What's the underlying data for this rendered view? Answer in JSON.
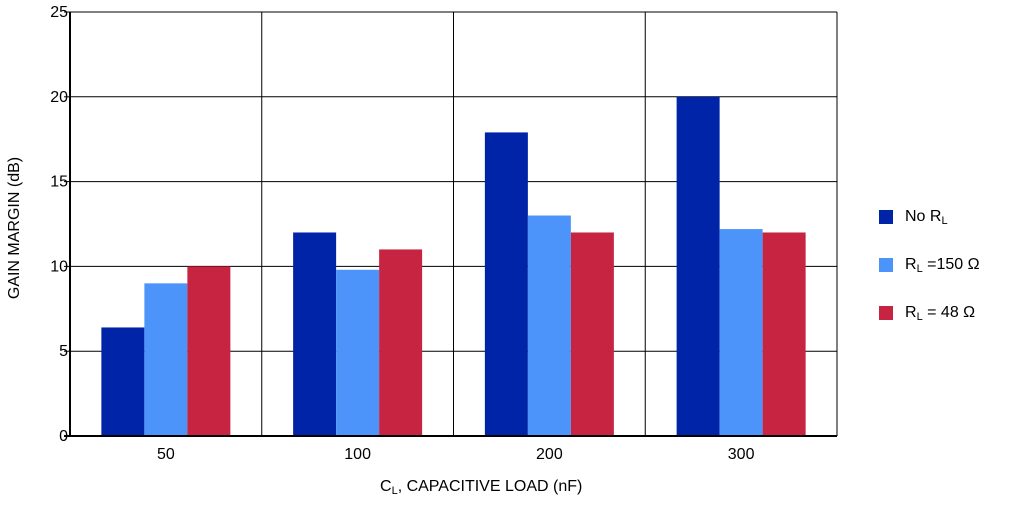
{
  "chart_data": {
    "type": "bar",
    "categories": [
      "50",
      "100",
      "200",
      "300"
    ],
    "series": [
      {
        "name": "No R_L",
        "label_main": "No R",
        "label_sub": "L",
        "label_tail": "",
        "color": "#0024a8",
        "values": [
          6.4,
          12.0,
          17.9,
          20.0
        ]
      },
      {
        "name": "R_L =150 Ω",
        "label_main": "R",
        "label_sub": "L",
        "label_tail": " =150 Ω",
        "color": "#4d94fa",
        "values": [
          9.0,
          9.8,
          13.0,
          12.2
        ]
      },
      {
        "name": "R_L = 48 Ω",
        "label_main": "R",
        "label_sub": "L",
        "label_tail": " = 48 Ω",
        "color": "#c62440",
        "values": [
          10.0,
          11.0,
          12.0,
          12.0
        ]
      }
    ],
    "xlabel": "C_L, CAPACITIVE LOAD (nF)",
    "xlabel_parts": {
      "main": "C",
      "sub": "L",
      "tail": ", CAPACITIVE LOAD (nF)"
    },
    "ylabel": "GAIN MARGIN (dB)",
    "ylim": [
      0,
      25
    ],
    "yticks": [
      0,
      5,
      10,
      15,
      20,
      25
    ],
    "grid": true,
    "legend_position": "right"
  }
}
